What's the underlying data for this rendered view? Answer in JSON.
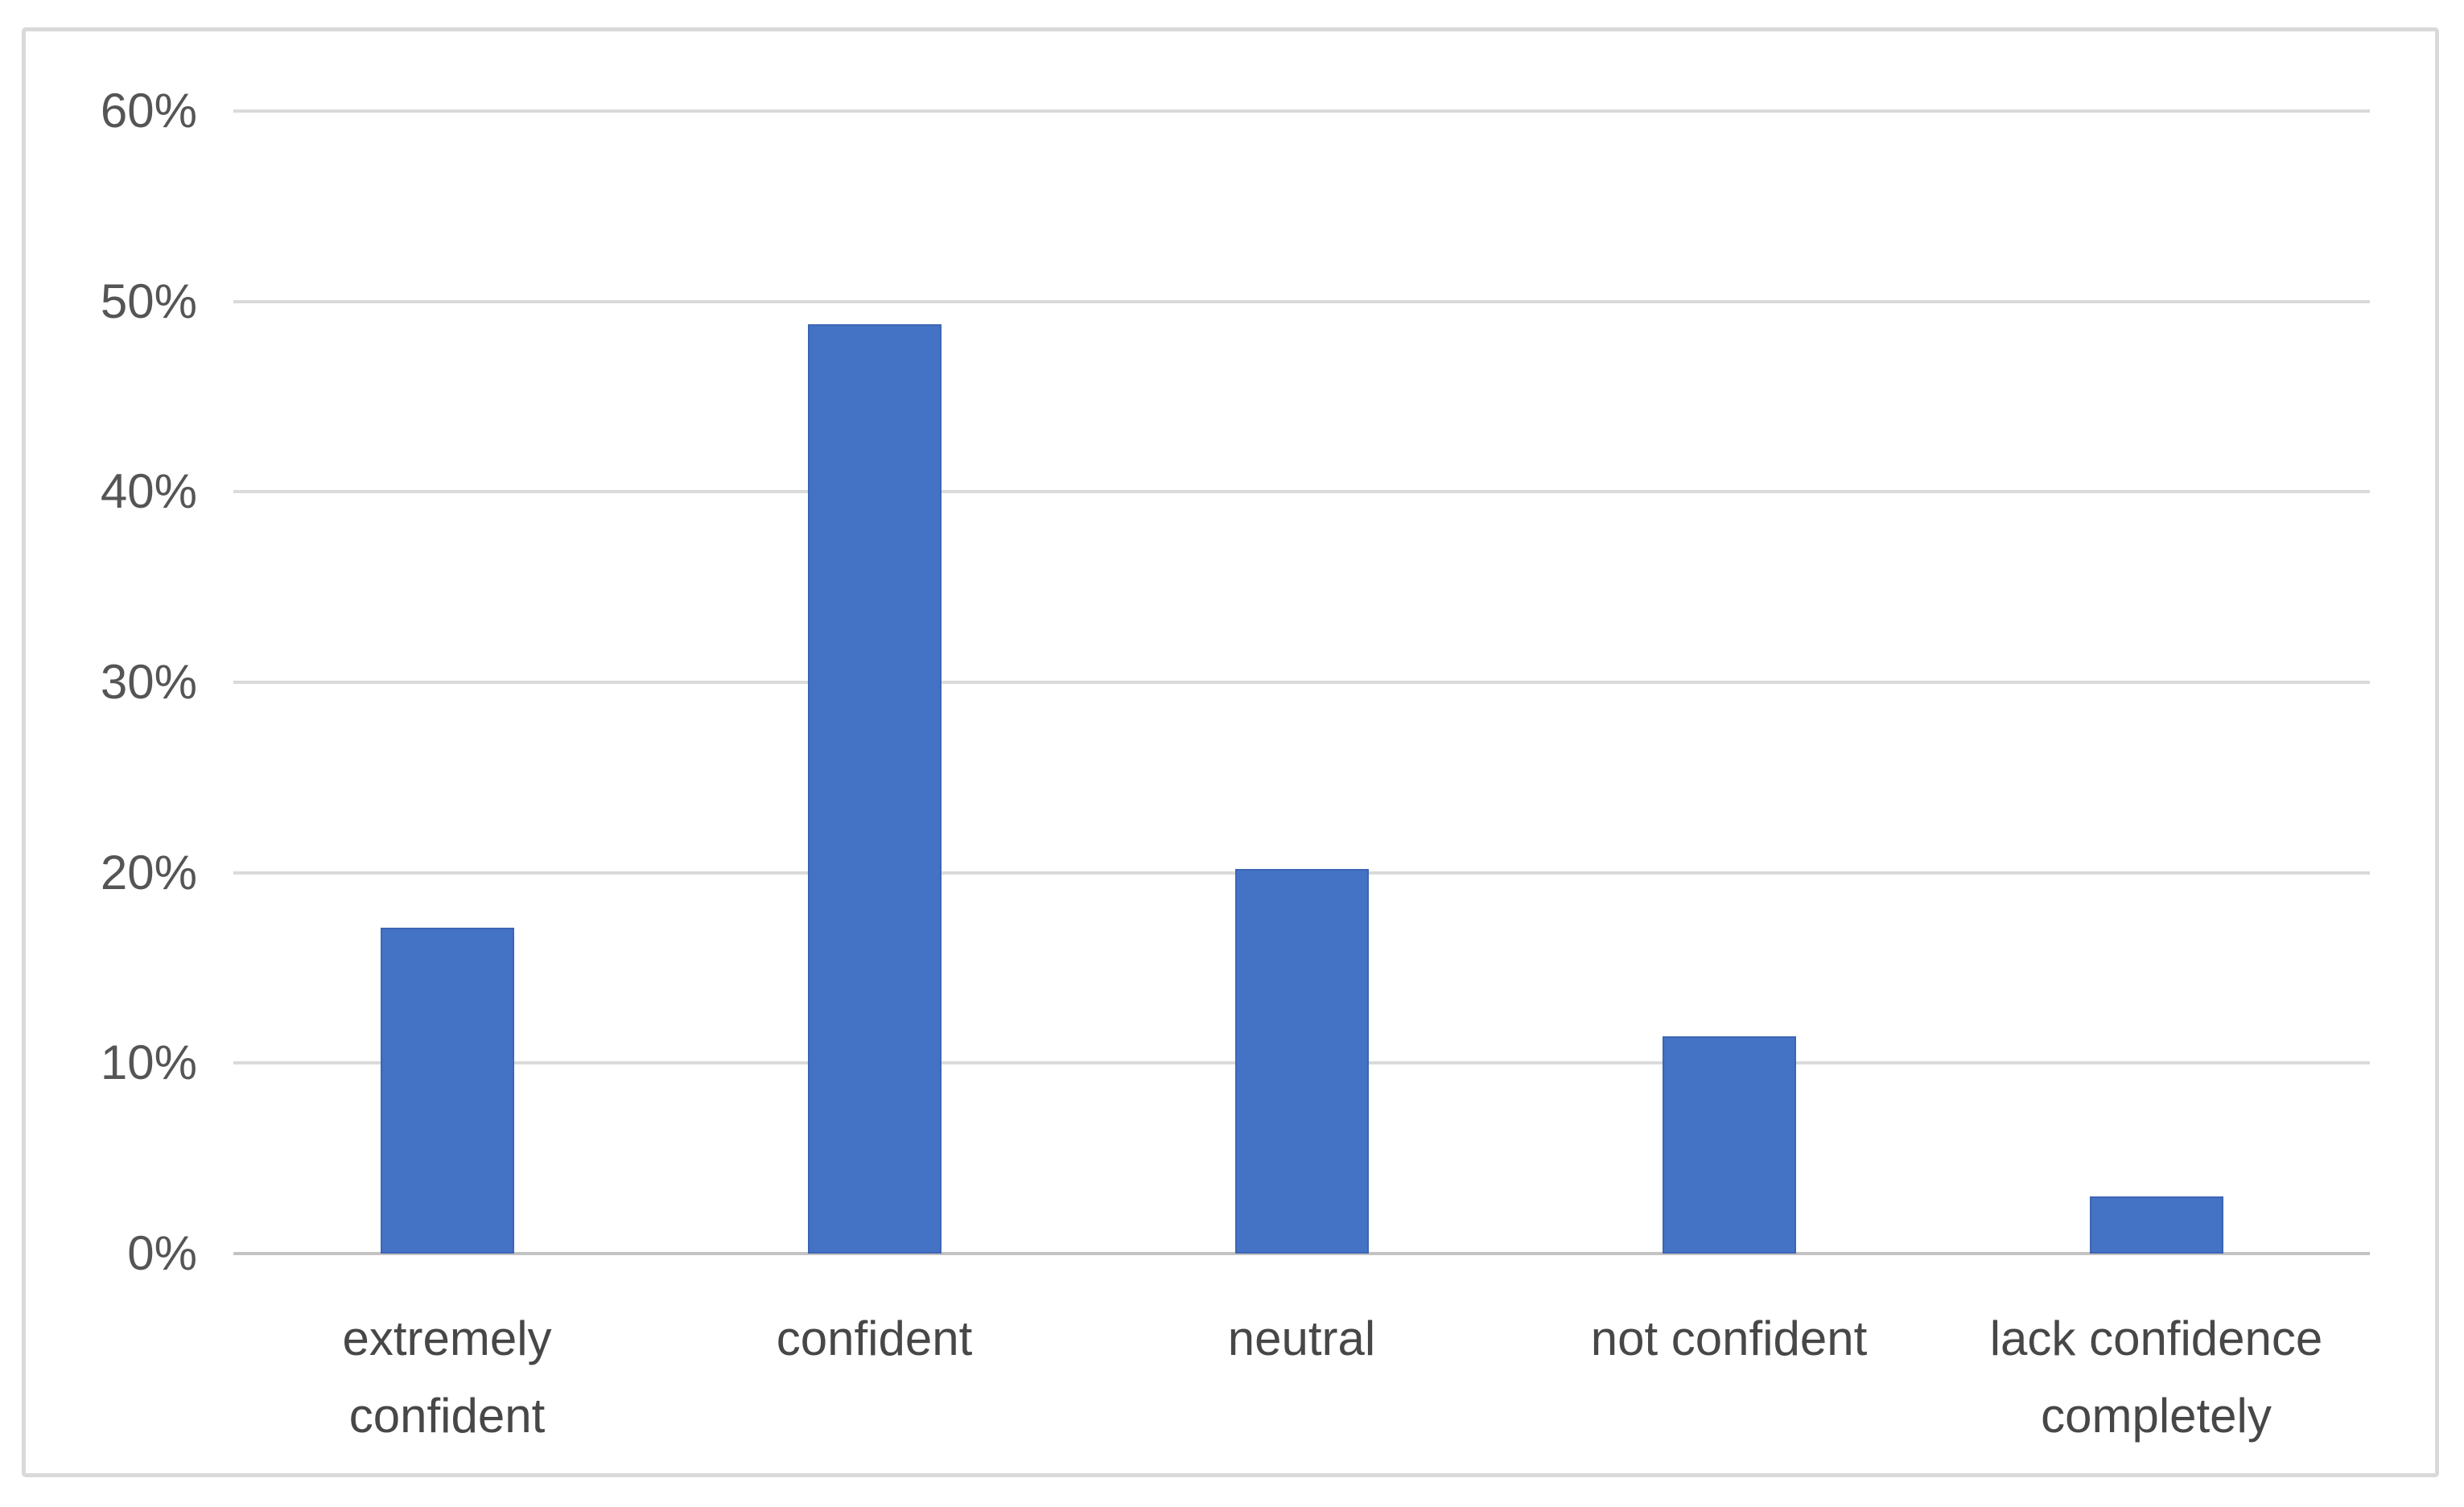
{
  "chart_data": {
    "type": "bar",
    "title": "",
    "xlabel": "",
    "ylabel": "",
    "categories": [
      "extremely confident",
      "confident",
      "neutral",
      "not confident",
      "lack confidence completely"
    ],
    "values": [
      17.1,
      48.8,
      20.2,
      11.4,
      3.0
    ],
    "unit": "%",
    "ylim": [
      0,
      60
    ],
    "ytick_step": 10,
    "ytick_labels": [
      "0%",
      "10%",
      "20%",
      "30%",
      "40%",
      "50%",
      "60%"
    ],
    "grid": true,
    "legend": false,
    "colors": {
      "bar_fill": "#4472C4",
      "bar_edge": "#3D65B4",
      "gridline": "#DADADA",
      "axis_line": "#C3C3C3",
      "tick_label": "#555555",
      "category_label": "#474747",
      "frame_border": "#D9D9D9",
      "background": "#FFFFFF"
    }
  }
}
